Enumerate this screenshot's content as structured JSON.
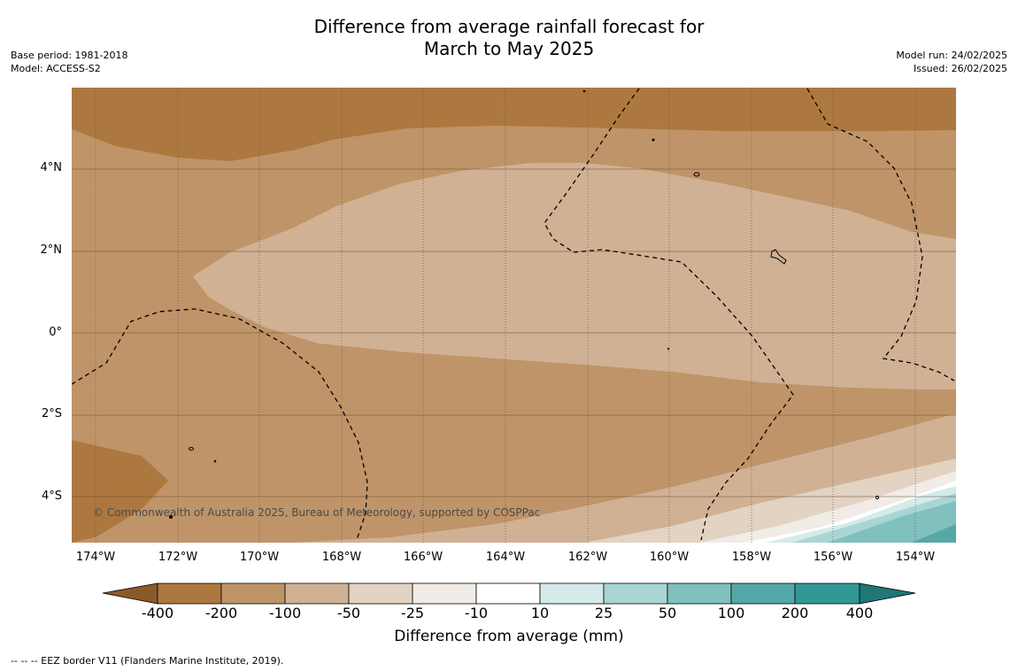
{
  "title": {
    "line1": "Difference from average rainfall forecast for",
    "line2": "March to May 2025"
  },
  "meta_left": {
    "base_period": "Base period: 1981-2018",
    "model": "Model: ACCESS-S2"
  },
  "meta_right": {
    "model_run": "Model run: 24/02/2025",
    "issued": "Issued: 26/02/2025"
  },
  "map": {
    "latitude_labels": [
      "4°N",
      "2°N",
      "0°",
      "2°S",
      "4°S"
    ],
    "longitude_labels": [
      "174°W",
      "172°W",
      "170°W",
      "168°W",
      "166°W",
      "164°W",
      "162°W",
      "160°W",
      "158°W",
      "156°W",
      "154°W"
    ],
    "credit": "© Commonwealth of Australia 2025, Bureau of Meteorology, supported by COSPPac",
    "grid": true,
    "boundary_style": "dashed"
  },
  "colorbar": {
    "label": "Difference from average (mm)",
    "ticks": [
      "-400",
      "-200",
      "-100",
      "-50",
      "-25",
      "-10",
      "10",
      "25",
      "50",
      "100",
      "200",
      "400"
    ],
    "colors": {
      "under": "#8b5a2b",
      "c1": "#ad783f",
      "c2": "#bf9468",
      "c3": "#d0b194",
      "c4": "#e3d3c2",
      "c5": "#f1ece7",
      "c6": "#ffffff",
      "c7": "#d4ebe9",
      "c8": "#a9d6d5",
      "c9": "#80c0be",
      "c10": "#55a8a8",
      "c11": "#319795",
      "over": "#207776"
    }
  },
  "footnote": "--  --  -- EEZ border V11 (Flanders Marine Institute, 2019)."
}
